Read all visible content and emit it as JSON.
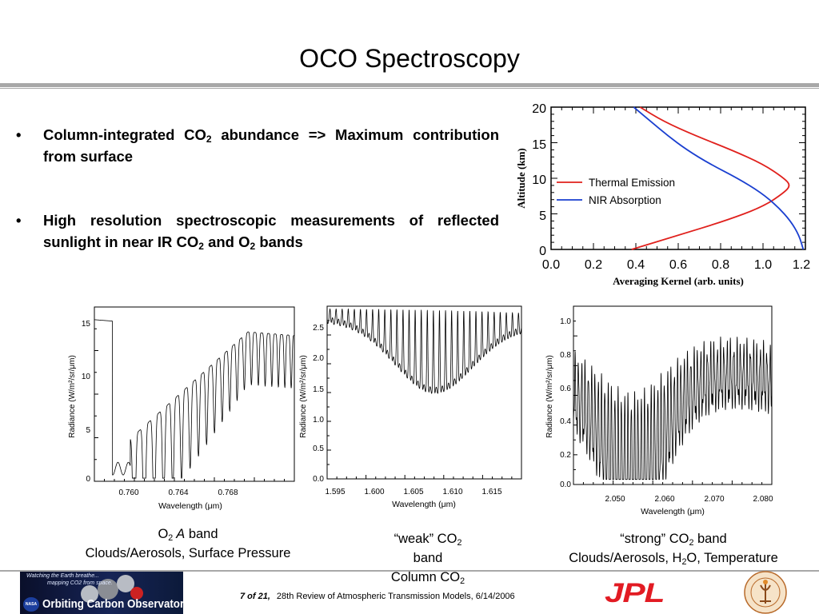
{
  "title": "OCO Spectroscopy",
  "bullets": [
    {
      "a": "Column-integrated CO",
      "b": "2",
      "c": " abundance => Maximum contribution from surface"
    },
    {
      "a": "High resolution spectroscopic measurements of reflected sunlight in near IR CO",
      "b": "2",
      "c": " and O",
      "d": "2",
      "e": " bands"
    }
  ],
  "captions": {
    "o2": {
      "l1a": "O",
      "l1b": "2",
      "l1c": " A",
      "l1d": " band",
      "l2": "Clouds/Aerosols, Surface Pressure"
    },
    "weak": {
      "l1a": "“weak” CO",
      "l1b": "2",
      "l2": "band",
      "l3a": "Column CO",
      "l3b": "2"
    },
    "strong": {
      "l1a": "“strong” CO",
      "l1b": "2",
      "l1c": " band",
      "l2a": "Clouds/Aerosols, H",
      "l2b": "2",
      "l2c": "O, Temperature"
    }
  },
  "footer": {
    "page": "7  of  21,",
    "text": "28th Review of Atmospheric Transmission Models, 6/14/2006"
  },
  "logos": {
    "oco_tag1": "Watching the Earth breathe...",
    "oco_tag2": "mapping CO2 from space.",
    "oco_name": "Orbiting Carbon Observatory",
    "nasa": "NASA",
    "jpl": "JPL"
  },
  "chart_data": [
    {
      "type": "line",
      "xlabel": "Averaging Kernel (arb. units)",
      "ylabel": "Altitude (km)",
      "xlim": [
        0.0,
        1.2
      ],
      "ylim": [
        0,
        20
      ],
      "xticks": [
        "0.0",
        "0.2",
        "0.4",
        "0.6",
        "0.8",
        "1.0",
        "1.2"
      ],
      "yticks": [
        "0",
        "5",
        "10",
        "15",
        "20"
      ],
      "legend_position": "center-left",
      "series": [
        {
          "name": "Thermal Emission",
          "color": "#e0201c",
          "points": [
            [
              0.38,
              0
            ],
            [
              0.6,
              2
            ],
            [
              0.82,
              4
            ],
            [
              1.0,
              6
            ],
            [
              1.1,
              8
            ],
            [
              1.13,
              9
            ],
            [
              1.1,
              10
            ],
            [
              1.0,
              12
            ],
            [
              0.85,
              14
            ],
            [
              0.68,
              16
            ],
            [
              0.53,
              18
            ],
            [
              0.42,
              20
            ]
          ]
        },
        {
          "name": "NIR Absorption",
          "color": "#1a3fd0",
          "points": [
            [
              1.19,
              0
            ],
            [
              1.17,
              2
            ],
            [
              1.13,
              4
            ],
            [
              1.07,
              6
            ],
            [
              0.99,
              8
            ],
            [
              0.88,
              10
            ],
            [
              0.75,
              12
            ],
            [
              0.64,
              14
            ],
            [
              0.55,
              16
            ],
            [
              0.47,
              18
            ],
            [
              0.39,
              20
            ]
          ]
        }
      ]
    },
    {
      "type": "line",
      "xlabel": "Wavelength (μm)",
      "ylabel": "Radiance (W/m²/sr/μm)",
      "xticks": [
        "0.760",
        "0.764",
        "0.768"
      ],
      "yticks": [
        "0",
        "5",
        "10",
        "15"
      ],
      "xlim": [
        0.7585,
        0.7715
      ],
      "ylim": [
        0,
        16.5
      ]
    },
    {
      "type": "line",
      "xlabel": "Wavelength (μm)",
      "ylabel": "Radiance (W/m²/sr/μm)",
      "xticks": [
        "1.595",
        "1.600",
        "1.605",
        "1.610",
        "1.615"
      ],
      "yticks": [
        "0.0",
        "0.5",
        "1.0",
        "1.5",
        "2.0",
        "2.5"
      ],
      "xlim": [
        1.5945,
        1.6185
      ],
      "ylim": [
        0,
        2.65
      ]
    },
    {
      "type": "line",
      "xlabel": "Wavelength (μm)",
      "ylabel": "Radiance (W/m²/sr/μm)",
      "xticks": [
        "2.050",
        "2.060",
        "2.070",
        "2.080"
      ],
      "yticks": [
        "0.0",
        "0.2",
        "0.4",
        "0.6",
        "0.8",
        "1.0"
      ],
      "xlim": [
        2.042,
        2.0835
      ],
      "ylim": [
        0,
        1.06
      ]
    }
  ]
}
